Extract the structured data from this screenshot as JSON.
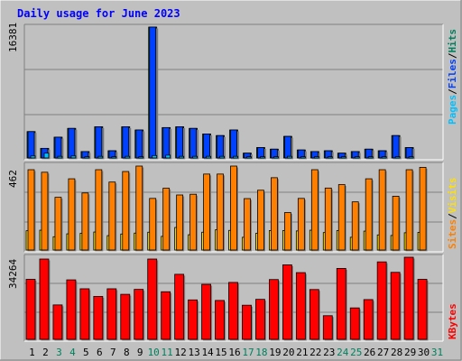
{
  "chart_data": {
    "type": "bar",
    "title": "Daily usage for June 2023",
    "colors": {
      "hits": "#00805c",
      "files": "#0040ff",
      "pages": "#00c0ff",
      "visits": "#ff8000",
      "sites": "#ffe000",
      "kbytes": "#ff0000",
      "weekend": "#00805c",
      "weekday": "#000000"
    },
    "categories": [
      "1",
      "2",
      "3",
      "4",
      "5",
      "6",
      "7",
      "8",
      "9",
      "10",
      "11",
      "12",
      "13",
      "14",
      "15",
      "16",
      "17",
      "18",
      "19",
      "20",
      "21",
      "22",
      "23",
      "24",
      "25",
      "26",
      "27",
      "28",
      "29",
      "30",
      "31"
    ],
    "weekend_days": [
      3,
      4,
      10,
      11,
      17,
      18,
      24,
      25,
      31
    ],
    "top_panel": {
      "ymax_label": "16381",
      "ymax": 16381,
      "legend": [
        "Pages",
        "/",
        "Files",
        "/",
        "Hits"
      ],
      "series": [
        {
          "name": "Hits",
          "values": [
            3300,
            1200,
            2600,
            3700,
            800,
            3900,
            900,
            3900,
            3500,
            16381,
            3800,
            3900,
            3700,
            3000,
            2800,
            3500,
            600,
            1300,
            1100,
            2700,
            1000,
            800,
            900,
            600,
            800,
            1100,
            900,
            2800,
            1300,
            0,
            0
          ]
        },
        {
          "name": "Files",
          "values": [
            3300,
            1200,
            2600,
            3700,
            800,
            3900,
            900,
            3900,
            3500,
            16381,
            3800,
            3900,
            3700,
            3000,
            2800,
            3500,
            600,
            1300,
            1100,
            2700,
            1000,
            800,
            900,
            600,
            800,
            1100,
            900,
            2800,
            1300,
            0,
            0
          ]
        },
        {
          "name": "Pages",
          "values": [
            250,
            600,
            200,
            250,
            150,
            200,
            150,
            200,
            150,
            300,
            350,
            200,
            200,
            200,
            200,
            200,
            150,
            150,
            150,
            200,
            150,
            150,
            150,
            150,
            150,
            150,
            150,
            150,
            150,
            0,
            0
          ]
        }
      ]
    },
    "middle_panel": {
      "ymax_label": "462",
      "ymax": 462,
      "legend": [
        "Sites",
        "/",
        "Visits"
      ],
      "series": [
        {
          "name": "Visits",
          "values": [
            442,
            428,
            290,
            392,
            314,
            442,
            374,
            432,
            462,
            284,
            340,
            303,
            307,
            418,
            418,
            462,
            283,
            329,
            398,
            206,
            284,
            442,
            341,
            360,
            265,
            392,
            442,
            296,
            442,
            455,
            0
          ]
        },
        {
          "name": "Sites",
          "values": [
            106,
            109,
            73,
            89,
            92,
            99,
            79,
            88,
            93,
            98,
            75,
            124,
            84,
            98,
            111,
            108,
            70,
            92,
            107,
            107,
            105,
            109,
            96,
            107,
            70,
            104,
            83,
            80,
            95,
            97,
            0
          ]
        }
      ]
    },
    "bottom_panel": {
      "ymax_label": "34264",
      "ymax": 34264,
      "legend": [
        "KBytes"
      ],
      "series": [
        {
          "name": "KBytes",
          "values": [
            25040,
            33510,
            14360,
            24820,
            21100,
            17920,
            21100,
            18790,
            20850,
            33510,
            19870,
            27140,
            16460,
            22950,
            16230,
            23750,
            14240,
            16690,
            24950,
            31070,
            27840,
            20790,
            9870,
            29590,
            13120,
            16590,
            32320,
            27960,
            34264,
            25040,
            0
          ]
        }
      ]
    }
  }
}
